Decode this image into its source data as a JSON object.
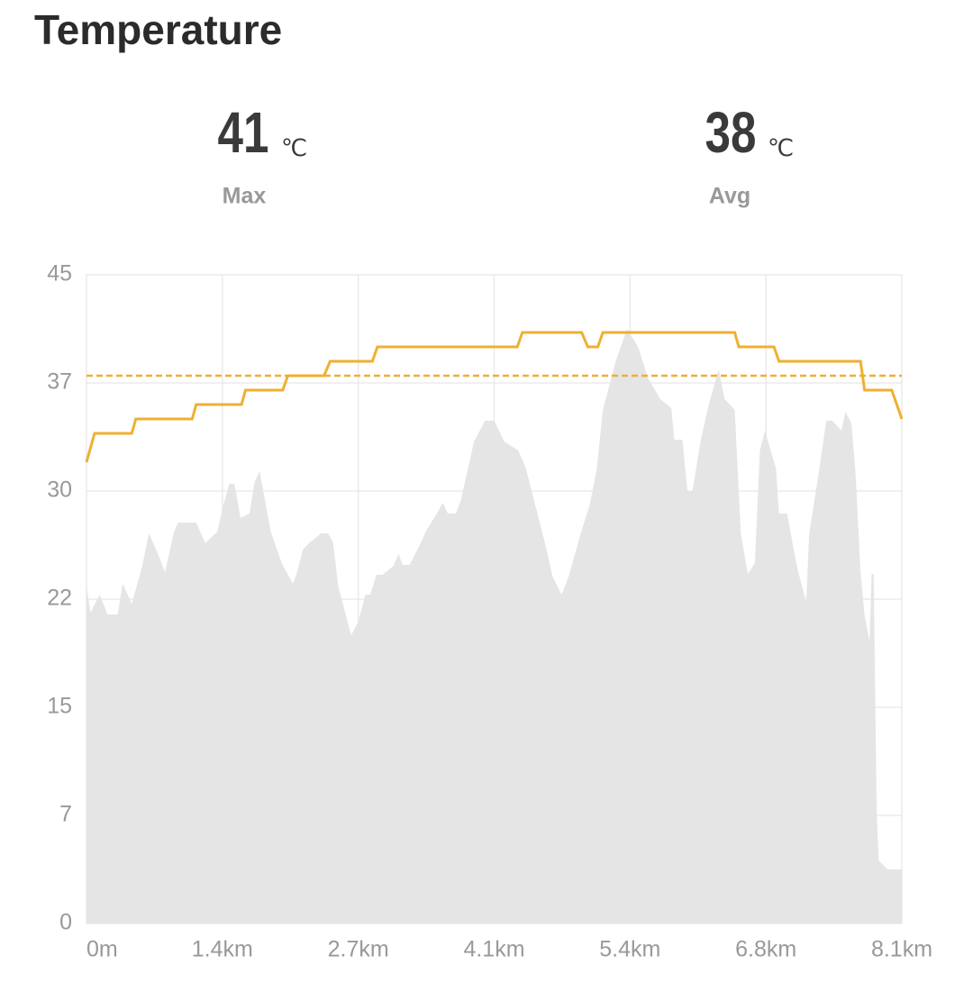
{
  "header": {
    "title": "Temperature"
  },
  "stats": [
    {
      "value": 41,
      "unit": "℃",
      "label": "Max"
    },
    {
      "value": 38,
      "unit": "℃",
      "label": "Avg"
    }
  ],
  "chart_data": {
    "type": "line",
    "xlim": [
      0,
      8.1
    ],
    "xticks": [
      {
        "value": 0,
        "label": "0m"
      },
      {
        "value": 1.35,
        "label": "1.4km"
      },
      {
        "value": 2.7,
        "label": "2.7km"
      },
      {
        "value": 4.05,
        "label": "4.1km"
      },
      {
        "value": 5.4,
        "label": "5.4km"
      },
      {
        "value": 6.75,
        "label": "6.8km"
      },
      {
        "value": 8.1,
        "label": "8.1km"
      }
    ],
    "ylim": [
      0,
      45
    ],
    "yticks": [
      0,
      {
        "value": 7.5,
        "label": "7"
      },
      15,
      {
        "value": 22.5,
        "label": "22"
      },
      30,
      {
        "value": 37.5,
        "label": "37"
      },
      45
    ],
    "grid": true,
    "series": [
      {
        "type": "area",
        "color": "#e5e5e5",
        "x": [
          0,
          0.04,
          0.13,
          0.21,
          0.31,
          0.36,
          0.45,
          0.55,
          0.62,
          0.71,
          0.78,
          0.87,
          0.91,
          1.09,
          1.18,
          1.3,
          1.36,
          1.42,
          1.47,
          1.53,
          1.62,
          1.67,
          1.72,
          1.83,
          1.94,
          2.05,
          2.09,
          2.15,
          2.21,
          2.33,
          2.4,
          2.45,
          2.5,
          2.6,
          2.63,
          2.7,
          2.77,
          2.82,
          2.88,
          2.94,
          3.05,
          3.1,
          3.14,
          3.21,
          3.32,
          3.37,
          3.48,
          3.54,
          3.59,
          3.67,
          3.72,
          3.79,
          3.85,
          3.96,
          4.05,
          4.15,
          4.29,
          4.36,
          4.48,
          4.56,
          4.63,
          4.72,
          4.79,
          4.91,
          5.0,
          5.07,
          5.13,
          5.26,
          5.37,
          5.48,
          5.58,
          5.7,
          5.81,
          5.84,
          5.92,
          5.97,
          6.02,
          6.1,
          6.18,
          6.28,
          6.34,
          6.44,
          6.5,
          6.57,
          6.64,
          6.69,
          6.74,
          6.85,
          6.88,
          6.96,
          7.06,
          7.15,
          7.18,
          7.27,
          7.35,
          7.41,
          7.5,
          7.54,
          7.6,
          7.64,
          7.69,
          7.73,
          7.78,
          7.8,
          7.82,
          7.85,
          7.87,
          7.96,
          8.1
        ],
        "values": [
          23.44,
          21.56,
          22.81,
          21.44,
          21.44,
          23.56,
          22.19,
          24.69,
          27.06,
          25.63,
          24.38,
          27.19,
          27.81,
          27.81,
          26.38,
          27.19,
          29.06,
          30.5,
          30.5,
          28.13,
          28.44,
          30.63,
          31.38,
          27.19,
          25,
          23.56,
          24.31,
          25.94,
          26.38,
          27.06,
          27.06,
          26.44,
          23.44,
          20.75,
          20,
          20.94,
          22.81,
          22.81,
          24.19,
          24.19,
          24.81,
          25.63,
          24.88,
          24.88,
          26.38,
          27.19,
          28.44,
          29.19,
          28.44,
          28.44,
          29.38,
          31.56,
          33.44,
          34.88,
          34.88,
          33.44,
          32.81,
          31.69,
          28.44,
          26.25,
          24.06,
          22.81,
          24.06,
          27.06,
          29.06,
          31.56,
          35.63,
          39.06,
          41.25,
          40,
          37.81,
          36.38,
          35.75,
          33.56,
          33.56,
          30,
          30,
          33.44,
          35.94,
          38.44,
          36.38,
          35.63,
          27.06,
          24.25,
          25,
          32.81,
          34.19,
          31.56,
          28.44,
          28.44,
          24.69,
          22.31,
          27.06,
          31.06,
          34.88,
          34.88,
          34.19,
          35.5,
          34.69,
          31.25,
          24.38,
          21.38,
          19.56,
          24.25,
          24.25,
          7.81,
          4.38,
          3.75,
          3.75
        ]
      },
      {
        "type": "line",
        "color": "#eeb032",
        "x": [
          0,
          0.08,
          0.45,
          0.49,
          1.05,
          1.09,
          1.54,
          1.58,
          1.95,
          2.0,
          2.36,
          2.42,
          2.84,
          2.89,
          4.28,
          4.33,
          4.92,
          4.98,
          5.08,
          5.13,
          6.44,
          6.48,
          6.83,
          6.88,
          7.69,
          7.73,
          8.0,
          8.1
        ],
        "values": [
          32,
          34,
          34,
          35,
          35,
          36,
          36,
          37,
          37,
          38,
          38,
          39,
          39,
          40,
          40,
          41,
          41,
          40,
          40,
          41,
          41,
          40,
          40,
          39,
          39,
          37,
          37,
          35
        ]
      }
    ]
  }
}
